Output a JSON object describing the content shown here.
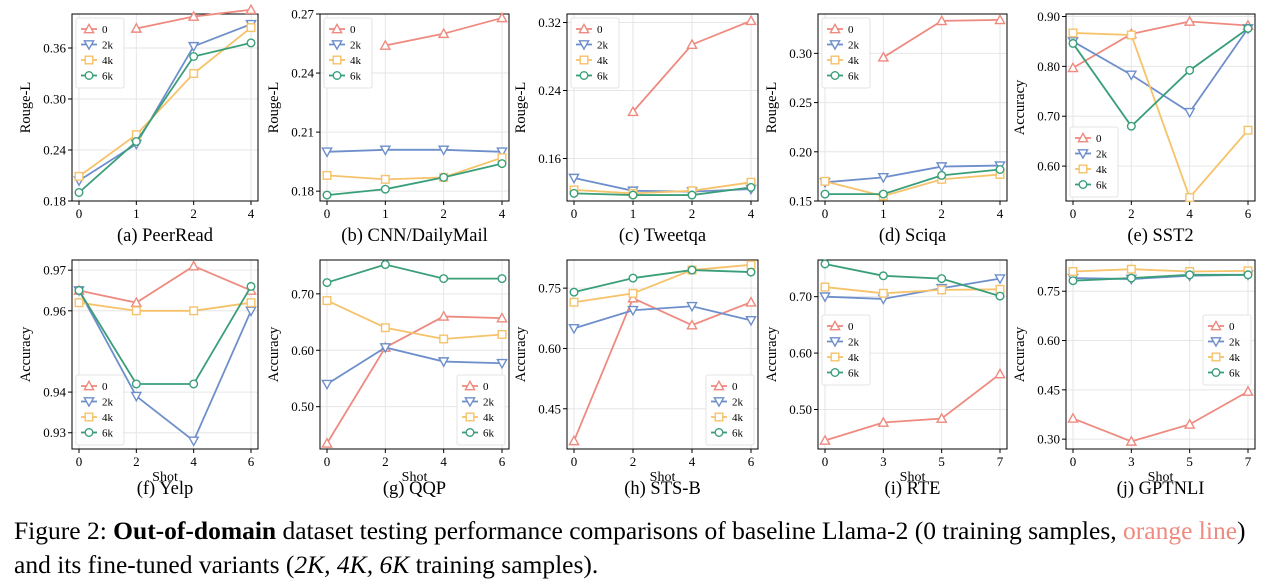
{
  "colors": {
    "0": "#ee8a7f",
    "2k": "#6e8fcb",
    "4k": "#f6c26a",
    "6k": "#3a9f79",
    "grid": "#e6e6e6"
  },
  "markers": {
    "0": "triangle-up",
    "2k": "triangle-down",
    "4k": "square",
    "6k": "circle"
  },
  "caption": {
    "label": "Figure 2: ",
    "bold": "Out-of-domain",
    "part1": " dataset testing performance comparisons of baseline Llama-2 (0 training samples, ",
    "orange": "orange line",
    "part2": ") and its fine-tuned variants (",
    "math": "2K, 4K, 6K",
    "part3": " training samples)."
  },
  "chart_data": [
    {
      "type": "line",
      "title": "(a) PeerRead",
      "xlabel": "",
      "ylabel": "Rouge-L",
      "x": [
        "0",
        "1",
        "2",
        "4"
      ],
      "ylim": [
        0.18,
        0.4
      ],
      "yticks": [
        "0.18",
        "0.24",
        "0.30",
        "0.36"
      ],
      "legend": "top-left",
      "series": [
        {
          "name": "0",
          "values": [
            null,
            0.383,
            0.397,
            0.405
          ]
        },
        {
          "name": "2k",
          "values": [
            0.204,
            0.247,
            0.362,
            0.388
          ]
        },
        {
          "name": "4k",
          "values": [
            0.209,
            0.258,
            0.33,
            0.384
          ]
        },
        {
          "name": "6k",
          "values": [
            0.19,
            0.25,
            0.35,
            0.366
          ]
        }
      ]
    },
    {
      "type": "line",
      "title": "(b) CNN/DailyMail",
      "xlabel": "",
      "ylabel": "Rouge-L",
      "x": [
        "0",
        "1",
        "2",
        "4"
      ],
      "ylim": [
        0.175,
        0.27
      ],
      "yticks": [
        "0.18",
        "0.21",
        "0.24",
        "0.27"
      ],
      "legend": "top-left",
      "series": [
        {
          "name": "0",
          "values": [
            null,
            0.254,
            0.26,
            0.268
          ]
        },
        {
          "name": "2k",
          "values": [
            0.2,
            0.201,
            0.201,
            0.2
          ]
        },
        {
          "name": "4k",
          "values": [
            0.188,
            0.186,
            0.187,
            0.197
          ]
        },
        {
          "name": "6k",
          "values": [
            0.178,
            0.181,
            0.187,
            0.194
          ]
        }
      ]
    },
    {
      "type": "line",
      "title": "(c) Tweetqa",
      "xlabel": "",
      "ylabel": "Rouge-L",
      "x": [
        "0",
        "1",
        "2",
        "4"
      ],
      "ylim": [
        0.11,
        0.33
      ],
      "yticks": [
        "0.16",
        "0.24",
        "0.32"
      ],
      "legend": "top-left",
      "series": [
        {
          "name": "0",
          "values": [
            null,
            0.215,
            0.294,
            0.322
          ]
        },
        {
          "name": "2k",
          "values": [
            0.137,
            0.122,
            0.121,
            0.124
          ]
        },
        {
          "name": "4k",
          "values": [
            0.123,
            0.119,
            0.122,
            0.132
          ]
        },
        {
          "name": "6k",
          "values": [
            0.119,
            0.117,
            0.117,
            0.126
          ]
        }
      ]
    },
    {
      "type": "line",
      "title": "(d) Sciqa",
      "xlabel": "",
      "ylabel": "Rouge-L",
      "x": [
        "0",
        "1",
        "2",
        "4"
      ],
      "ylim": [
        0.15,
        0.34
      ],
      "yticks": [
        "0.15",
        "0.20",
        "0.25",
        "0.30"
      ],
      "legend": "top-left",
      "series": [
        {
          "name": "0",
          "values": [
            null,
            0.296,
            0.333,
            0.334
          ]
        },
        {
          "name": "2k",
          "values": [
            0.169,
            0.174,
            0.185,
            0.186
          ]
        },
        {
          "name": "4k",
          "values": [
            0.17,
            0.155,
            0.172,
            0.177
          ]
        },
        {
          "name": "6k",
          "values": [
            0.157,
            0.157,
            0.176,
            0.182
          ]
        }
      ]
    },
    {
      "type": "line",
      "title": "(e) SST2",
      "xlabel": "",
      "ylabel": "Accuracy",
      "x": [
        "0",
        "2",
        "4",
        "6"
      ],
      "ylim": [
        0.53,
        0.905
      ],
      "yticks": [
        "0.60",
        "0.70",
        "0.80",
        "0.90"
      ],
      "legend": "bottom-left",
      "series": [
        {
          "name": "0",
          "values": [
            0.797,
            0.865,
            0.89,
            0.882
          ]
        },
        {
          "name": "2k",
          "values": [
            0.85,
            0.783,
            0.708,
            0.876
          ]
        },
        {
          "name": "4k",
          "values": [
            0.867,
            0.863,
            0.537,
            0.672
          ]
        },
        {
          "name": "6k",
          "values": [
            0.846,
            0.68,
            0.792,
            0.876
          ]
        }
      ]
    },
    {
      "type": "line",
      "title": "(f) Yelp",
      "xlabel": "Shot",
      "ylabel": "Accuracy",
      "x": [
        "0",
        "2",
        "4",
        "6"
      ],
      "ylim": [
        0.926,
        0.9725
      ],
      "yticks": [
        "0.93",
        "0.94",
        "0.96",
        "0.97"
      ],
      "legend": "bottom-left",
      "series": [
        {
          "name": "0",
          "values": [
            0.965,
            0.962,
            0.971,
            0.965
          ]
        },
        {
          "name": "2k",
          "values": [
            0.965,
            0.939,
            0.928,
            0.96
          ]
        },
        {
          "name": "4k",
          "values": [
            0.962,
            0.96,
            0.96,
            0.962
          ]
        },
        {
          "name": "6k",
          "values": [
            0.965,
            0.942,
            0.942,
            0.966
          ]
        }
      ]
    },
    {
      "type": "line",
      "title": "(g) QQP",
      "xlabel": "Shot",
      "ylabel": "Accuracy",
      "x": [
        "0",
        "2",
        "4",
        "6"
      ],
      "ylim": [
        0.425,
        0.76
      ],
      "yticks": [
        "0.50",
        "0.60",
        "0.70"
      ],
      "legend": "bottom-right",
      "series": [
        {
          "name": "0",
          "values": [
            0.435,
            0.605,
            0.66,
            0.657
          ]
        },
        {
          "name": "2k",
          "values": [
            0.54,
            0.605,
            0.58,
            0.577
          ]
        },
        {
          "name": "4k",
          "values": [
            0.688,
            0.64,
            0.62,
            0.628
          ]
        },
        {
          "name": "6k",
          "values": [
            0.72,
            0.752,
            0.727,
            0.727
          ]
        }
      ]
    },
    {
      "type": "line",
      "title": "(h) STS-B",
      "xlabel": "Shot",
      "ylabel": "Accuracy",
      "x": [
        "0",
        "2",
        "4",
        "6"
      ],
      "ylim": [
        0.35,
        0.82
      ],
      "yticks": [
        "0.45",
        "0.60",
        "0.75"
      ],
      "legend": "bottom-right",
      "series": [
        {
          "name": "0",
          "values": [
            0.37,
            0.725,
            0.658,
            0.715
          ]
        },
        {
          "name": "2k",
          "values": [
            0.65,
            0.695,
            0.705,
            0.67
          ]
        },
        {
          "name": "4k",
          "values": [
            0.715,
            0.737,
            0.795,
            0.808
          ]
        },
        {
          "name": "6k",
          "values": [
            0.74,
            0.775,
            0.795,
            0.79
          ]
        }
      ]
    },
    {
      "type": "line",
      "title": "(i) RTE",
      "xlabel": "Shot",
      "ylabel": "Accuracy",
      "x": [
        "0",
        "3",
        "5",
        "7"
      ],
      "ylim": [
        0.43,
        0.765
      ],
      "yticks": [
        "0.50",
        "0.60",
        "0.70"
      ],
      "legend": "middle-left",
      "series": [
        {
          "name": "0",
          "values": [
            0.445,
            0.477,
            0.484,
            0.563
          ]
        },
        {
          "name": "2k",
          "values": [
            0.7,
            0.696,
            0.715,
            0.732
          ]
        },
        {
          "name": "4k",
          "values": [
            0.717,
            0.706,
            0.712,
            0.713
          ]
        },
        {
          "name": "6k",
          "values": [
            0.758,
            0.737,
            0.732,
            0.701
          ]
        }
      ]
    },
    {
      "type": "line",
      "title": "(j) GPTNLI",
      "xlabel": "Shot",
      "ylabel": "Accuracy",
      "x": [
        "0",
        "3",
        "5",
        "7"
      ],
      "ylim": [
        0.27,
        0.845
      ],
      "yticks": [
        "0.30",
        "0.45",
        "0.60",
        "0.75"
      ],
      "legend": "middle-right",
      "series": [
        {
          "name": "0",
          "values": [
            0.363,
            0.293,
            0.345,
            0.445
          ]
        },
        {
          "name": "2k",
          "values": [
            0.79,
            0.787,
            0.797,
            0.8
          ]
        },
        {
          "name": "4k",
          "values": [
            0.81,
            0.817,
            0.81,
            0.812
          ]
        },
        {
          "name": "6k",
          "values": [
            0.782,
            0.79,
            0.8,
            0.8
          ]
        }
      ]
    }
  ]
}
